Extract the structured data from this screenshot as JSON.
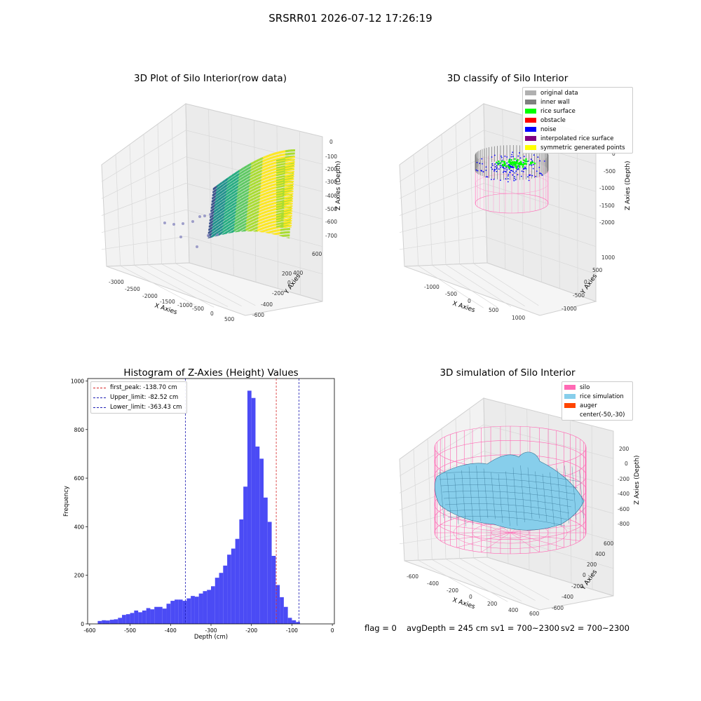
{
  "suptitle": "SRSRR01 2026-07-12 17:26:19",
  "panels": {
    "raw": {
      "title": "3D Plot of Silo Interior(row data)",
      "xlabel": "X Axies",
      "ylabel": "Y Axies",
      "zlabel": "Z Axies (Depth)",
      "xticks": [
        "-3000",
        "-2500",
        "-2000",
        "-1500",
        "-1000",
        "-500",
        "0",
        "500"
      ],
      "yticks": [
        "600",
        "400",
        "200",
        "0",
        "-200",
        "-400",
        "-600"
      ],
      "zticks": [
        "0",
        "-100",
        "-200",
        "-300",
        "-400",
        "-500",
        "-600",
        "-700"
      ]
    },
    "classify": {
      "title": "3D classify of Silo Interior",
      "xlabel": "X Axies",
      "ylabel": "Y Axies",
      "zlabel": "Z Axies (Depth)",
      "xticks": [
        "-1000",
        "-500",
        "0",
        "500",
        "1000"
      ],
      "yticks": [
        "1000",
        "500",
        "0",
        "-500",
        "-1000"
      ],
      "zticks": [
        "0",
        "-500",
        "-1000",
        "-1500",
        "-2000"
      ],
      "legend": [
        {
          "label": "original data",
          "color": "#b0b0b0"
        },
        {
          "label": "inner wall",
          "color": "#808080"
        },
        {
          "label": "rice surface",
          "color": "#00ff00"
        },
        {
          "label": "obstacle",
          "color": "#ff0000"
        },
        {
          "label": "noise",
          "color": "#0000ff"
        },
        {
          "label": "interpolated rice surface",
          "color": "#800080"
        },
        {
          "label": "symmetric generated points",
          "color": "#ffff00"
        }
      ]
    },
    "simulation": {
      "title": "3D simulation of Silo Interior",
      "xlabel": "X Axies",
      "ylabel": "Y Axies",
      "zlabel": "Z Axies (Depth)",
      "xticks": [
        "-600",
        "-400",
        "-200",
        "0",
        "200",
        "400",
        "600"
      ],
      "yticks": [
        "600",
        "400",
        "200",
        "0",
        "-200",
        "-400",
        "-600"
      ],
      "zticks": [
        "200",
        "0",
        "-200",
        "-400",
        "-600",
        "-800"
      ],
      "legend": [
        {
          "label": "silo",
          "color": "#ff69b4"
        },
        {
          "label": "rice simulation",
          "color": "#87ceeb"
        },
        {
          "label": "auger",
          "color": "#ff4500"
        },
        {
          "label": "center(-50,-30)",
          "color": ""
        }
      ]
    }
  },
  "chart_data": {
    "type": "bar",
    "title": "Histogram of Z-Axies (Height) Values",
    "xlabel": "Depth (cm)",
    "ylabel": "Frequency",
    "xlim": [
      -605,
      5
    ],
    "ylim": [
      0,
      1010
    ],
    "xticks": [
      -600,
      -500,
      -400,
      -300,
      -200,
      -100,
      0
    ],
    "yticks": [
      0,
      200,
      400,
      600,
      800,
      1000
    ],
    "bar_color": "#4b4bf5",
    "bin_start": -580,
    "bin_width": 10,
    "values": [
      12,
      15,
      14,
      17,
      19,
      25,
      37,
      40,
      45,
      55,
      48,
      55,
      65,
      60,
      70,
      70,
      63,
      83,
      95,
      100,
      100,
      95,
      105,
      115,
      112,
      125,
      135,
      140,
      155,
      190,
      210,
      240,
      285,
      310,
      350,
      430,
      565,
      960,
      930,
      730,
      680,
      520,
      420,
      280,
      160,
      110,
      70,
      25,
      15,
      8
    ],
    "lines": [
      {
        "label": "first_peak: -138.70 cm",
        "x": -138.7,
        "color": "#d62728"
      },
      {
        "label": "Upper_limit: -82.52 cm",
        "x": -82.52,
        "color": "#1f1fb4"
      },
      {
        "label": "Lower_limit: -363.43 cm",
        "x": -363.43,
        "color": "#1f1fb4"
      }
    ]
  },
  "footer": {
    "flag": "flag = 0",
    "avg": "avgDepth = 245 cm",
    "sv1": "sv1 = 700~2300",
    "sv2": "sv2 = 700~2300"
  }
}
